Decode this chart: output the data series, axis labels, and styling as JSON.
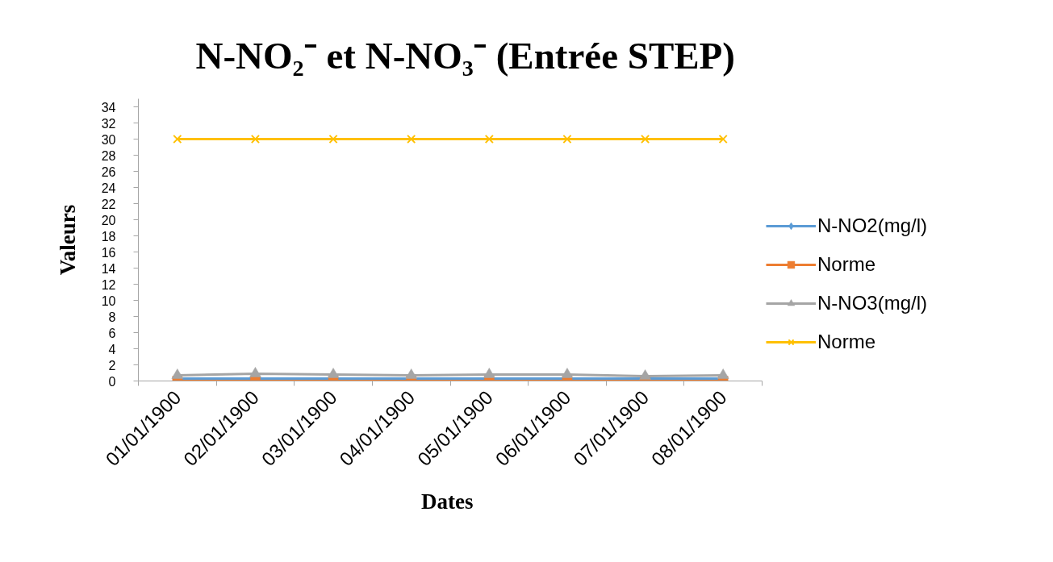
{
  "chart_data": {
    "type": "line",
    "title": "N-NO₂⁻ et N-NO₃⁻ (Entrée STEP)",
    "xlabel": "Dates",
    "ylabel": "Valeurs",
    "categories": [
      "01/01/1900",
      "02/01/1900",
      "03/01/1900",
      "04/01/1900",
      "05/01/1900",
      "06/01/1900",
      "07/01/1900",
      "08/01/1900"
    ],
    "ylim": [
      0,
      35
    ],
    "yticks": [
      0,
      2,
      4,
      6,
      8,
      10,
      12,
      14,
      16,
      18,
      20,
      22,
      24,
      26,
      28,
      30,
      32,
      34
    ],
    "grid": false,
    "legend": "right",
    "series": [
      {
        "name": "N-NO2(mg/l)",
        "color": "#5b9bd5",
        "marker": "diamond",
        "values": [
          0.3,
          0.3,
          0.3,
          0.3,
          0.3,
          0.3,
          0.3,
          0.3
        ]
      },
      {
        "name": "Norme",
        "color": "#ed7d31",
        "marker": "square",
        "values": [
          0,
          0,
          0,
          0,
          0,
          0,
          0,
          0
        ]
      },
      {
        "name": "N-NO3(mg/l)",
        "color": "#a5a5a5",
        "marker": "triangle",
        "values": [
          0.7,
          0.9,
          0.8,
          0.7,
          0.8,
          0.8,
          0.6,
          0.7
        ]
      },
      {
        "name": "Norme",
        "color": "#ffc000",
        "marker": "cross",
        "values": [
          30,
          30,
          30,
          30,
          30,
          30,
          30,
          30
        ]
      }
    ]
  }
}
